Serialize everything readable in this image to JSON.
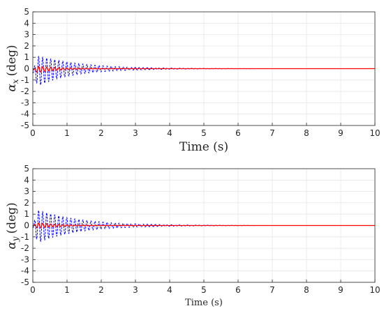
{
  "chart_data": [
    {
      "type": "line",
      "xlabel": "Time (s)",
      "ylabel": "αx (deg)",
      "ylabel_symbol": "α",
      "ylabel_subscript": "x",
      "ylabel_unit": "(deg)",
      "xlim": [
        0,
        10
      ],
      "ylim": [
        -5,
        5
      ],
      "xticks": [
        "0",
        "1",
        "2",
        "3",
        "4",
        "5",
        "6",
        "7",
        "8",
        "9",
        "10"
      ],
      "yticks": [
        "5",
        "4",
        "3",
        "2",
        "1",
        "0",
        "-1",
        "-2",
        "-3",
        "-4",
        "-5"
      ],
      "grid": true,
      "series": [
        {
          "color": "#0000ff",
          "style": "dashed",
          "amplitude": 1.5,
          "decay_rate": 0.85,
          "frequency_hz": 8.5,
          "offset": -0.3,
          "settle_time": 6.5
        },
        {
          "color": "#ff0000",
          "style": "solid",
          "amplitude": 0.35,
          "decay_rate": 1.6,
          "frequency_hz": 8.5,
          "offset": -0.1,
          "settle_time": 3.0
        }
      ]
    },
    {
      "type": "line",
      "xlabel": "Time (s)",
      "ylabel": "αy (deg)",
      "ylabel_symbol": "α",
      "ylabel_subscript": "y",
      "ylabel_unit": "(deg)",
      "xlim": [
        0,
        10
      ],
      "ylim": [
        -5,
        5
      ],
      "xticks": [
        "0",
        "1",
        "2",
        "3",
        "4",
        "5",
        "6",
        "7",
        "8",
        "9",
        "10"
      ],
      "yticks": [
        "5",
        "4",
        "3",
        "2",
        "1",
        "0",
        "-1",
        "-2",
        "-3",
        "-4",
        "-5"
      ],
      "grid": true,
      "series": [
        {
          "color": "#0000ff",
          "style": "dashed",
          "amplitude": 1.6,
          "decay_rate": 0.8,
          "frequency_hz": 8.5,
          "offset": -0.1,
          "settle_time": 6.5
        },
        {
          "color": "#ff0000",
          "style": "solid",
          "amplitude": 0.3,
          "decay_rate": 1.6,
          "frequency_hz": 8.5,
          "offset": 0.0,
          "settle_time": 3.0
        }
      ]
    }
  ]
}
